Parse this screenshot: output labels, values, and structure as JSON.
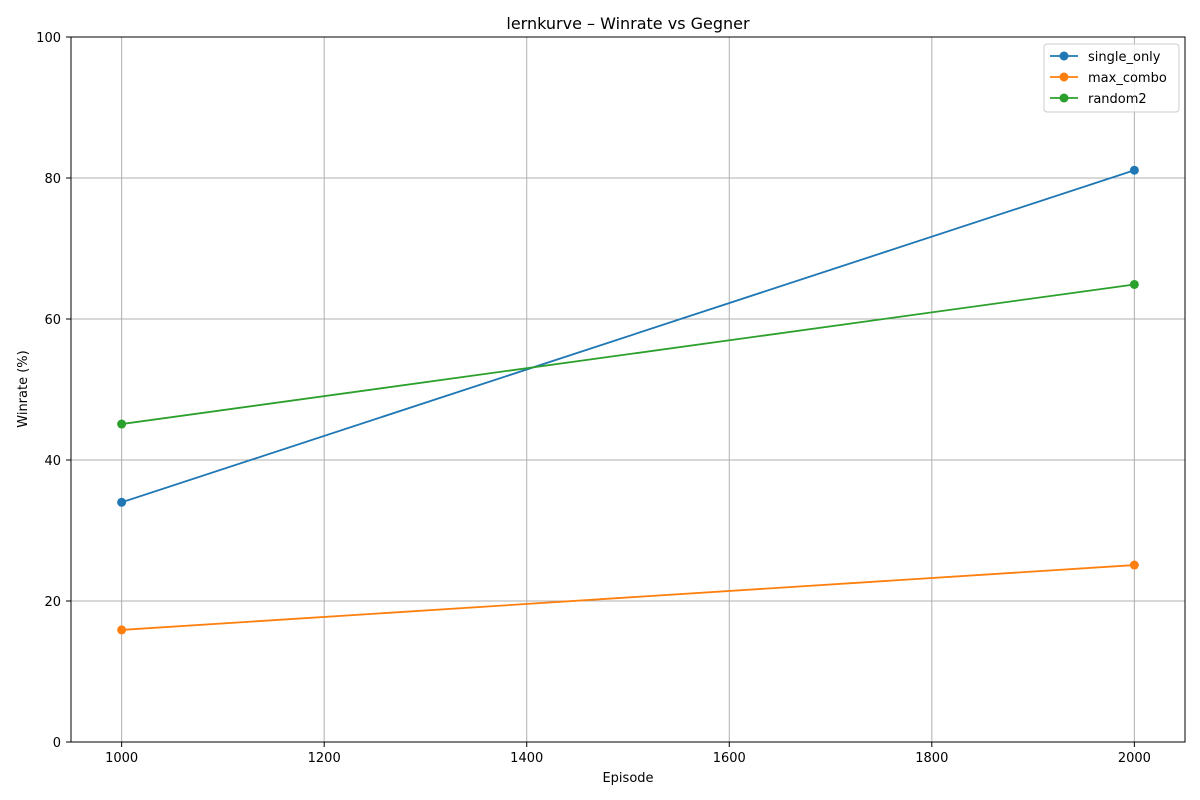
{
  "chart_data": {
    "type": "line",
    "title": "lernkurve – Winrate vs Gegner",
    "xlabel": "Episode",
    "ylabel": "Winrate (%)",
    "x": [
      1000,
      2000
    ],
    "xlim": [
      950,
      2050
    ],
    "ylim": [
      0,
      100
    ],
    "xticks": [
      1000,
      1200,
      1400,
      1600,
      1800,
      2000
    ],
    "yticks": [
      0,
      20,
      40,
      60,
      80,
      100
    ],
    "grid": true,
    "legend_position": "top-right",
    "markers": "circle",
    "series": [
      {
        "name": "single_only",
        "values": [
          34.0,
          81.1
        ],
        "color": "#1f77b4"
      },
      {
        "name": "max_combo",
        "values": [
          15.9,
          25.1
        ],
        "color": "#ff7f0e"
      },
      {
        "name": "random2",
        "values": [
          45.1,
          64.9
        ],
        "color": "#2ca02c"
      }
    ]
  }
}
